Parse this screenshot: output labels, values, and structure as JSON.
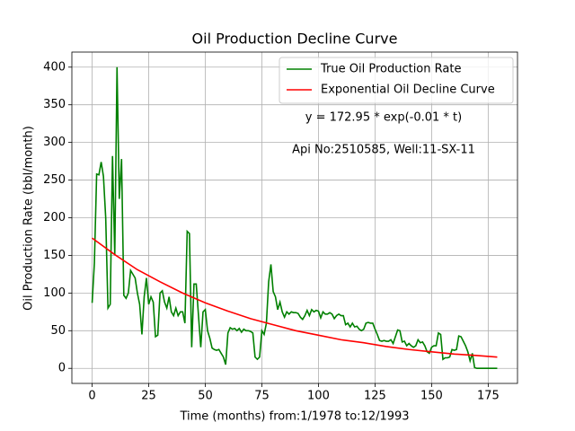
{
  "chart_data": {
    "type": "line",
    "title": "Oil Production Decline Curve",
    "x_label": "Time (months) from:1/1978 to:12/1993",
    "y_label": "Oil Production Rate (bbl/month)",
    "annotations": [
      "y = 172.95 * exp(-0.01 * t)",
      "Api No:2510585, Well:11-SX-11"
    ],
    "legend": "upper right",
    "grid": true,
    "xlim": [
      -8.95,
      187.95
    ],
    "ylim": [
      -20,
      420
    ],
    "xticks": [
      0,
      25,
      50,
      75,
      100,
      125,
      150,
      175
    ],
    "yticks": [
      0,
      50,
      100,
      150,
      200,
      250,
      300,
      350,
      400
    ],
    "series": [
      {
        "name": "True Oil Production Rate",
        "color": "#008000",
        "x": [
          0,
          1,
          2,
          3,
          4,
          5,
          6,
          7,
          8,
          9,
          10,
          11,
          12,
          13,
          14,
          15,
          16,
          17,
          18,
          19,
          20,
          21,
          22,
          23,
          24,
          25,
          26,
          27,
          28,
          29,
          30,
          31,
          32,
          33,
          34,
          35,
          36,
          37,
          38,
          39,
          40,
          41,
          42,
          43,
          44,
          45,
          46,
          47,
          48,
          49,
          50,
          51,
          52,
          53,
          54,
          55,
          56,
          57,
          58,
          59,
          60,
          61,
          62,
          63,
          64,
          65,
          66,
          67,
          68,
          69,
          70,
          71,
          72,
          73,
          74,
          75,
          76,
          77,
          78,
          79,
          80,
          81,
          82,
          83,
          84,
          85,
          86,
          87,
          88,
          89,
          90,
          91,
          92,
          93,
          94,
          95,
          96,
          97,
          98,
          99,
          100,
          101,
          102,
          103,
          104,
          105,
          106,
          107,
          108,
          109,
          110,
          111,
          112,
          113,
          114,
          115,
          116,
          117,
          118,
          119,
          120,
          121,
          122,
          123,
          124,
          125,
          126,
          127,
          128,
          129,
          130,
          131,
          132,
          133,
          134,
          135,
          136,
          137,
          138,
          139,
          140,
          141,
          142,
          143,
          144,
          145,
          146,
          147,
          148,
          149,
          150,
          151,
          152,
          153,
          154,
          155,
          156,
          157,
          158,
          159,
          160,
          161,
          162,
          163,
          164,
          165,
          166,
          167,
          168,
          169,
          170,
          171,
          172,
          173,
          174,
          175,
          176,
          177,
          178,
          179
        ],
        "values": [
          87,
          140,
          258,
          257,
          274,
          255,
          200,
          80,
          85,
          282,
          150,
          400,
          225,
          278,
          97,
          93,
          100,
          130,
          125,
          120,
          100,
          85,
          45,
          95,
          120,
          85,
          95,
          88,
          42,
          44,
          100,
          103,
          88,
          80,
          95,
          75,
          70,
          80,
          70,
          75,
          75,
          60,
          182,
          179,
          28,
          112,
          112,
          70,
          28,
          75,
          78,
          50,
          40,
          27,
          25,
          24,
          25,
          20,
          15,
          5,
          47,
          54,
          52,
          53,
          50,
          53,
          48,
          52,
          50,
          50,
          49,
          47,
          15,
          12,
          15,
          50,
          45,
          60,
          115,
          138,
          102,
          95,
          78,
          88,
          75,
          68,
          75,
          72,
          75,
          74,
          74,
          73,
          68,
          65,
          70,
          77,
          70,
          78,
          75,
          77,
          76,
          67,
          75,
          72,
          72,
          74,
          72,
          66,
          70,
          72,
          70,
          70,
          58,
          60,
          55,
          60,
          55,
          56,
          52,
          50,
          52,
          60,
          61,
          60,
          60,
          52,
          45,
          37,
          36,
          37,
          36,
          36,
          38,
          33,
          42,
          51,
          50,
          35,
          36,
          30,
          33,
          30,
          28,
          30,
          38,
          34,
          35,
          30,
          22,
          20,
          28,
          30,
          30,
          47,
          45,
          12,
          14,
          14,
          15,
          25,
          24,
          25,
          43,
          42,
          36,
          30,
          22,
          10,
          20,
          1,
          0,
          0,
          0,
          0,
          0,
          0,
          0,
          0,
          0,
          0
        ]
      },
      {
        "name": "Exponential Oil Decline Curve",
        "color": "#ff0000",
        "x": [
          0,
          10,
          20,
          30,
          40,
          50,
          60,
          70,
          80,
          90,
          100,
          110,
          120,
          130,
          140,
          150,
          160,
          170,
          179
        ],
        "values": [
          173,
          151,
          131,
          115,
          100,
          87,
          76,
          66,
          58,
          50,
          44,
          38,
          34,
          29,
          25,
          22,
          19,
          17,
          15
        ]
      }
    ]
  }
}
